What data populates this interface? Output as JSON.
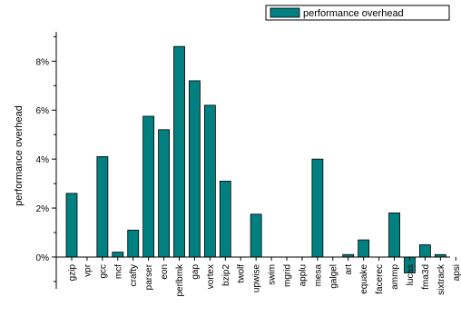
{
  "chart_data": {
    "type": "bar",
    "categories": [
      "gzip",
      "vpr",
      "gcc",
      "mcf",
      "crafty",
      "parser",
      "eon",
      "perlbmk",
      "gap",
      "vortex",
      "bzip2",
      "twolf",
      "upwise",
      "swim",
      "mgrid",
      "applu",
      "mesa",
      "galgel",
      "art",
      "equake",
      "facerec",
      "ammp",
      "lucas",
      "fma3d",
      "sixtrack",
      "apsi"
    ],
    "series": [
      {
        "name": "performance overhead",
        "values": [
          2.6,
          0.0,
          4.1,
          0.2,
          1.1,
          5.75,
          5.2,
          8.6,
          7.2,
          6.2,
          3.1,
          0.0,
          1.75,
          0.0,
          0.0,
          0.0,
          4.0,
          0.0,
          0.1,
          0.7,
          0.0,
          1.8,
          -0.65,
          0.5,
          0.1,
          0.0
        ]
      }
    ],
    "yticks": [
      "0%",
      "2%",
      "4%",
      "6%",
      "8%"
    ],
    "ytick_values": [
      0,
      2,
      4,
      6,
      8
    ],
    "ylim": [
      -1.3,
      9.2
    ],
    "ylabel": "performance overhead",
    "legend_position": "top-right",
    "bar_color": "#008080"
  }
}
